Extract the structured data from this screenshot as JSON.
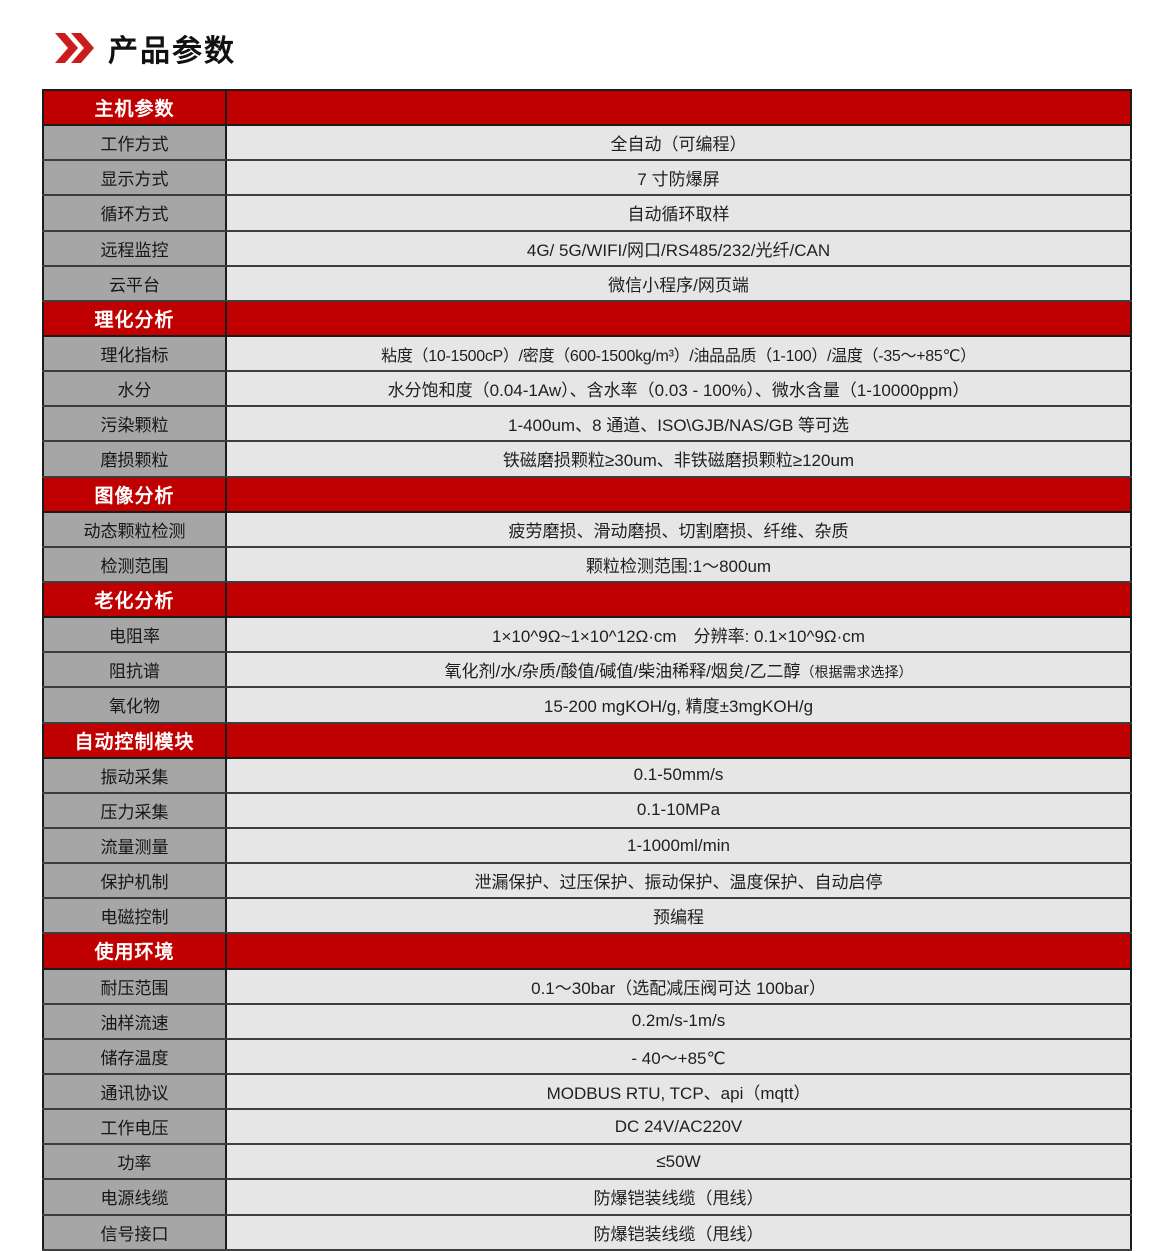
{
  "page_title": "产品参数",
  "title_icon": "double-chevron-right-icon",
  "colors": {
    "header_red": "#c00000",
    "icon_red": "#cc1d1d",
    "label_gray": "#a6a6a6",
    "value_bg": "#e7e6e6",
    "row_border": "#3d3d3d",
    "outer_border": "#1b1b1b",
    "header_text": "#ffffff"
  },
  "table": {
    "sections": [
      {
        "header": "主机参数",
        "rows": [
          {
            "label": "工作方式",
            "value": "全自动（可编程）"
          },
          {
            "label": "显示方式",
            "value": "7 寸防爆屏"
          },
          {
            "label": "循环方式",
            "value": "自动循环取样"
          },
          {
            "label": "远程监控",
            "value": "4G/ 5G/WIFI/网口/RS485/232/光纤/CAN"
          },
          {
            "label": "云平台",
            "value": "微信小程序/网页端"
          }
        ]
      },
      {
        "header": "理化分析",
        "rows": [
          {
            "label": "理化指标",
            "value": "粘度（10-1500cP）/密度（600-1500kg/m³）/油品品质（1-100）/温度（-35～+85℃）",
            "tight": true
          },
          {
            "label": "水分",
            "value": "水分饱和度（0.04-1Aw）、含水率（0.03 - 100%）、微水含量（1-10000ppm）"
          },
          {
            "label": "污染颗粒",
            "value": "1-400um、8 通道、ISO\\GJB/NAS/GB 等可选"
          },
          {
            "label": "磨损颗粒",
            "value": "铁磁磨损颗粒≥30um、非铁磁磨损颗粒≥120um"
          }
        ]
      },
      {
        "header": "图像分析",
        "rows": [
          {
            "label": "动态颗粒检测",
            "value": "疲劳磨损、滑动磨损、切割磨损、纤维、杂质"
          },
          {
            "label": "检测范围",
            "value": "颗粒检测范围:1～800um"
          }
        ]
      },
      {
        "header": "老化分析",
        "rows": [
          {
            "label": "电阻率",
            "value": "1×10^9Ω~1×10^12Ω·cm　分辨率: 0.1×10^9Ω·cm"
          },
          {
            "label": "阻抗谱",
            "value": "氧化剂/水/杂质/酸值/碱值/柴油稀释/烟炱/乙二醇",
            "note": "（根据需求选择）"
          },
          {
            "label": "氧化物",
            "value": "15-200 mgKOH/g, 精度±3mgKOH/g"
          }
        ]
      },
      {
        "header": "自动控制模块",
        "rows": [
          {
            "label": "振动采集",
            "value": "0.1-50mm/s"
          },
          {
            "label": "压力采集",
            "value": "0.1-10MPa"
          },
          {
            "label": "流量测量",
            "value": "1-1000ml/min"
          },
          {
            "label": "保护机制",
            "value": "泄漏保护、过压保护、振动保护、温度保护、自动启停"
          },
          {
            "label": "电磁控制",
            "value": "预编程"
          }
        ]
      },
      {
        "header": "使用环境",
        "rows": [
          {
            "label": "耐压范围",
            "value": "0.1～30bar（选配减压阀可达 100bar）"
          },
          {
            "label": "油样流速",
            "value": "0.2m/s-1m/s"
          },
          {
            "label": "储存温度",
            "value": "- 40～+85℃"
          },
          {
            "label": "通讯协议",
            "value": "MODBUS RTU, TCP、api（mqtt）"
          },
          {
            "label": "工作电压",
            "value": "DC 24V/AC220V"
          },
          {
            "label": "功率",
            "value": "≤50W"
          },
          {
            "label": "电源线缆",
            "value": "防爆铠装线缆（甩线）"
          },
          {
            "label": "信号接口",
            "value": "防爆铠装线缆（甩线）"
          }
        ]
      }
    ]
  }
}
